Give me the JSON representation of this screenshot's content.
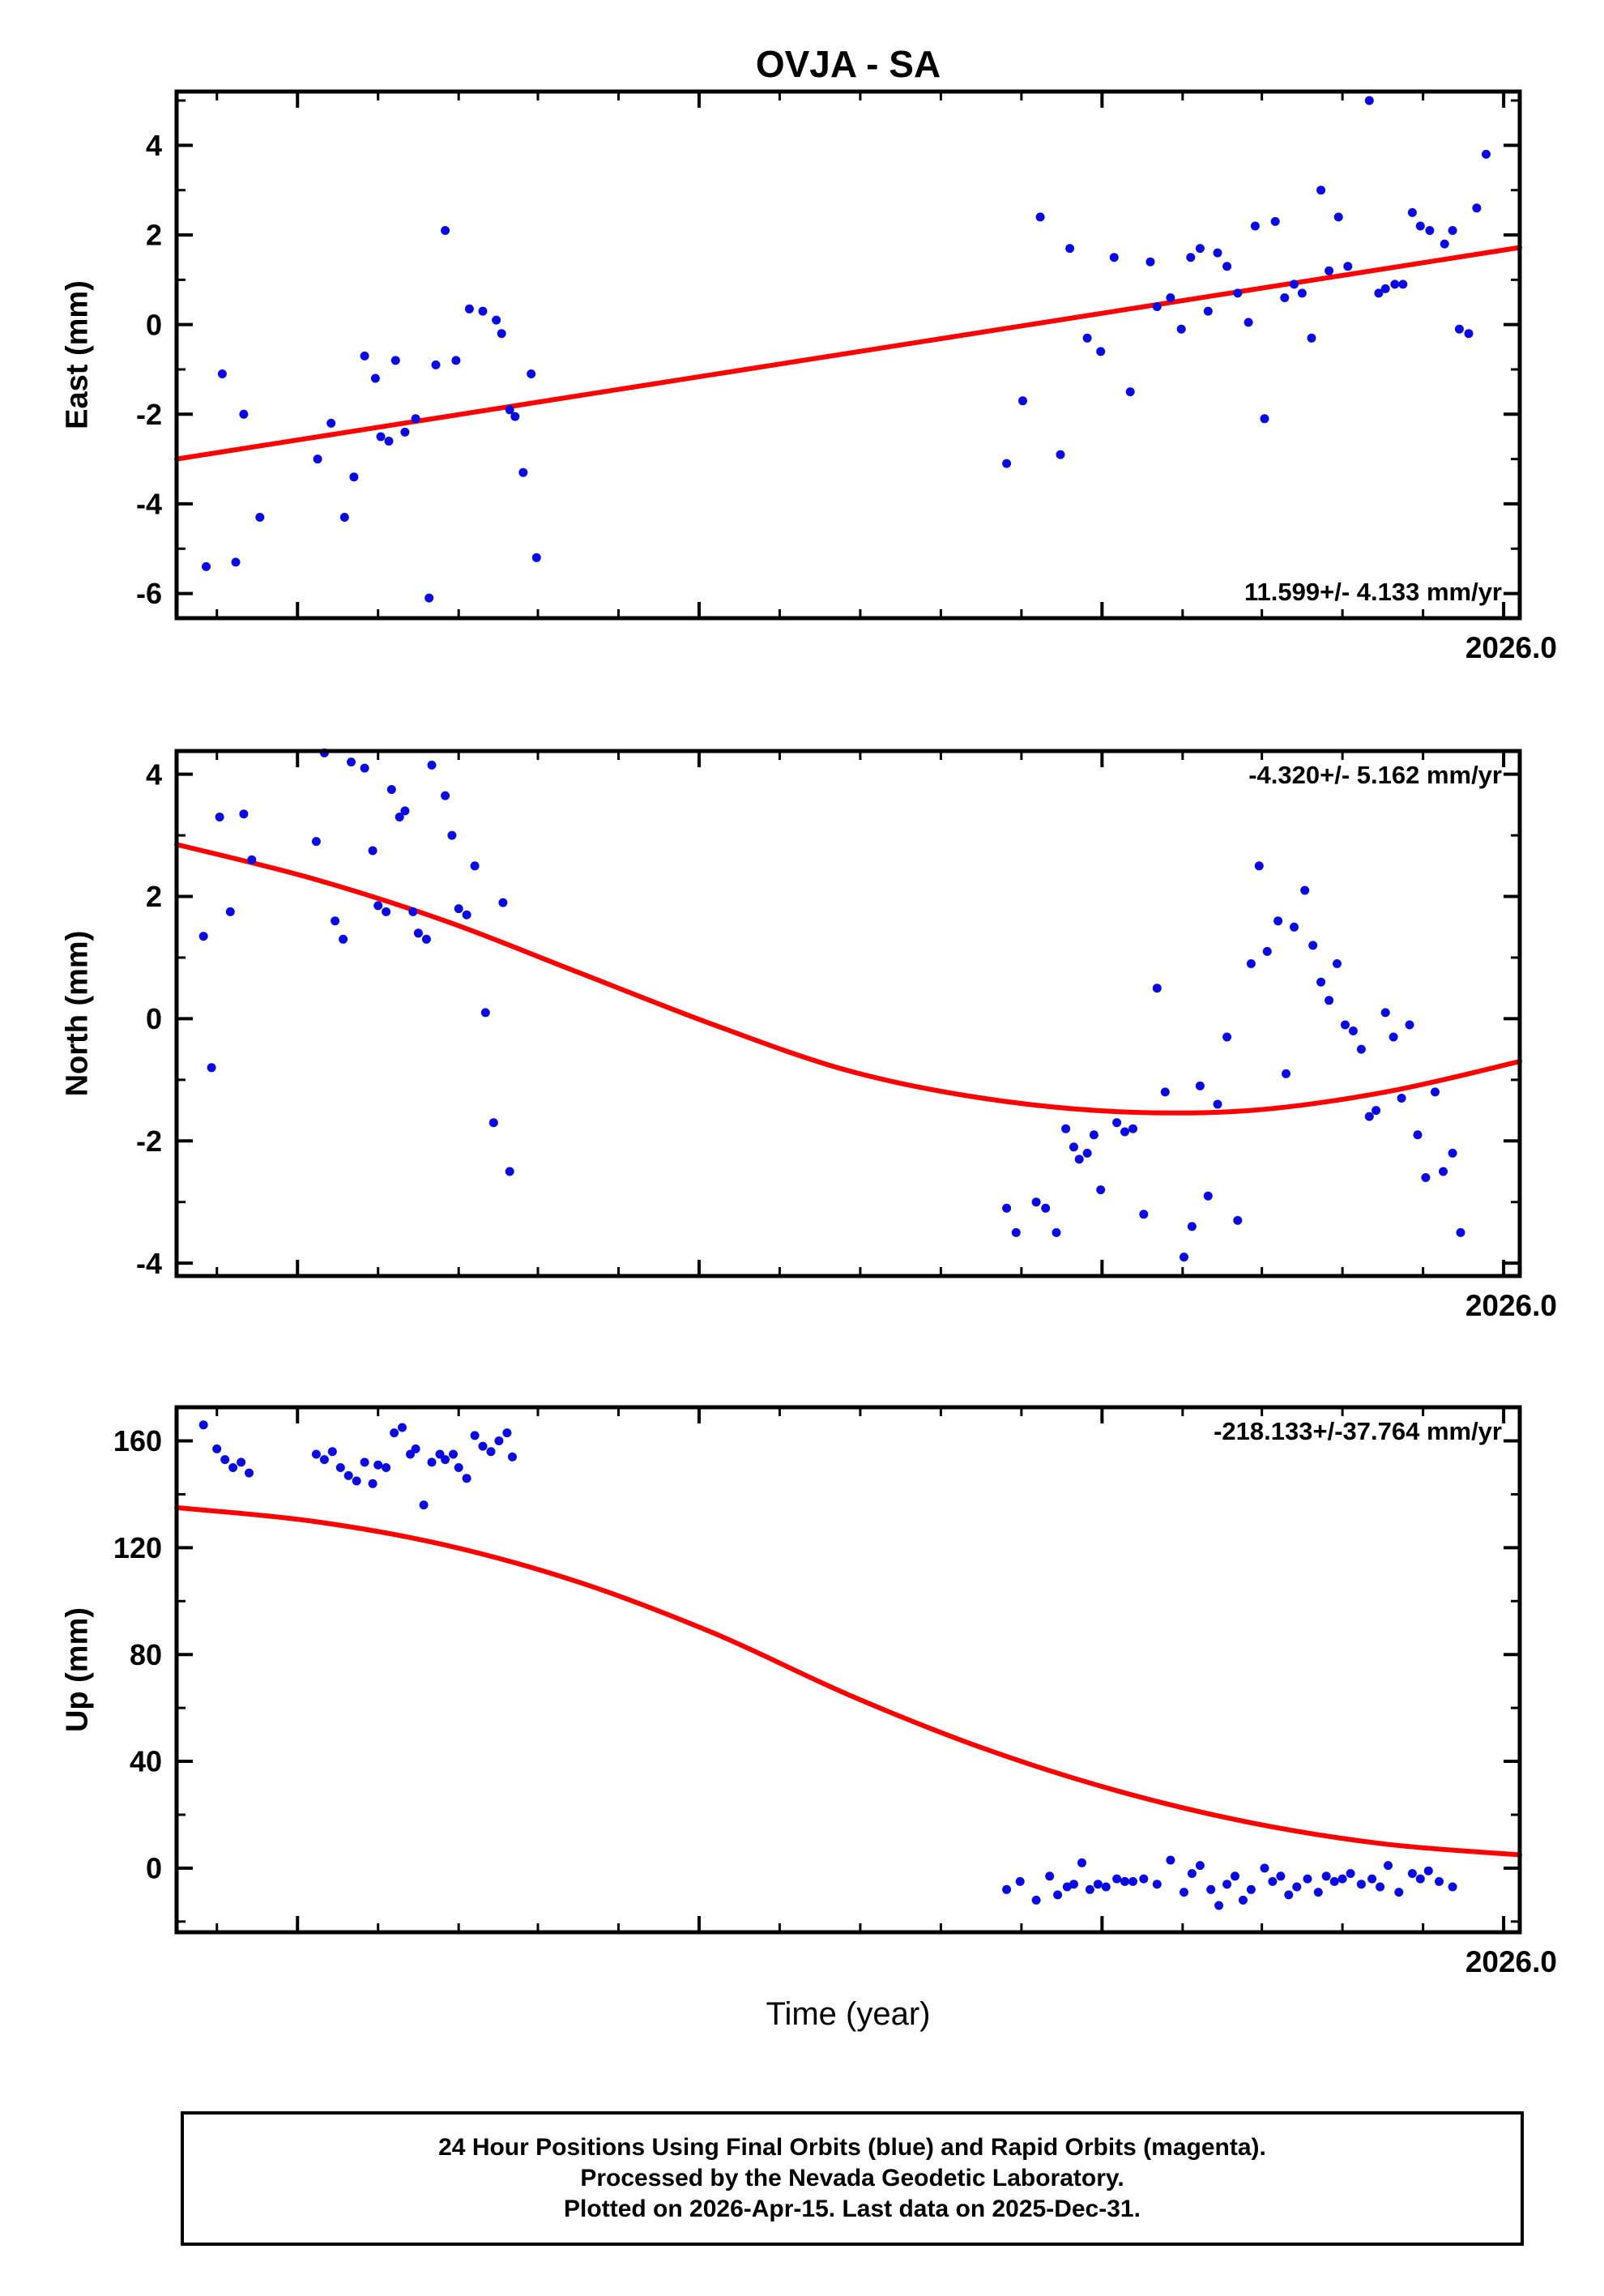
{
  "title": "OVJA - SA",
  "time_axis_label": "Time (year)",
  "colors": {
    "points": "#0a0ae0",
    "trend": "#ff0000",
    "axis": "#000000"
  },
  "x_axis": {
    "right_label": "2026.0",
    "major_fracs": [
      0.09,
      0.389,
      0.689,
      0.988
    ],
    "minor_fracs": [
      0.03,
      0.15,
      0.21,
      0.269,
      0.329,
      0.449,
      0.509,
      0.569,
      0.629,
      0.749,
      0.808,
      0.868,
      0.928
    ]
  },
  "footer": {
    "lines": [
      "24 Hour Positions Using Final Orbits (blue) and Rapid Orbits (magenta).",
      "Processed by the Nevada Geodetic Laboratory.",
      "Plotted on 2026-Apr-15. Last data on 2025-Dec-31."
    ]
  },
  "chart_data": [
    {
      "type": "scatter",
      "ylabel": "East (mm)",
      "annotation": "11.599+/- 4.133 mm/yr",
      "annotation_pos": "bottom-right",
      "x_right_label": "2026.0",
      "ylim": [
        -6.55,
        5.2
      ],
      "yticks": [
        -6,
        -4,
        -2,
        0,
        2,
        4
      ],
      "yticks_minor": [
        -5,
        -3,
        -1,
        1,
        3,
        5
      ],
      "points": [
        [
          0.022,
          -5.4
        ],
        [
          0.034,
          -1.1
        ],
        [
          0.044,
          -5.3
        ],
        [
          0.05,
          -2.0
        ],
        [
          0.062,
          -4.3
        ],
        [
          0.105,
          -3.0
        ],
        [
          0.115,
          -2.2
        ],
        [
          0.125,
          -4.3
        ],
        [
          0.132,
          -3.4
        ],
        [
          0.14,
          -0.7
        ],
        [
          0.148,
          -1.2
        ],
        [
          0.152,
          -2.5
        ],
        [
          0.158,
          -2.6
        ],
        [
          0.163,
          -0.8
        ],
        [
          0.17,
          -2.4
        ],
        [
          0.178,
          -2.1
        ],
        [
          0.188,
          -6.1
        ],
        [
          0.193,
          -0.9
        ],
        [
          0.2,
          2.1
        ],
        [
          0.208,
          -0.8
        ],
        [
          0.218,
          0.35
        ],
        [
          0.228,
          0.3
        ],
        [
          0.238,
          0.1
        ],
        [
          0.242,
          -0.2
        ],
        [
          0.248,
          -1.9
        ],
        [
          0.252,
          -2.05
        ],
        [
          0.258,
          -3.3
        ],
        [
          0.264,
          -1.1
        ],
        [
          0.268,
          -5.2
        ],
        [
          0.618,
          -3.1
        ],
        [
          0.63,
          -1.7
        ],
        [
          0.643,
          2.4
        ],
        [
          0.658,
          -2.9
        ],
        [
          0.665,
          1.7
        ],
        [
          0.678,
          -0.3
        ],
        [
          0.688,
          -0.6
        ],
        [
          0.698,
          1.5
        ],
        [
          0.71,
          -1.5
        ],
        [
          0.725,
          1.4
        ],
        [
          0.73,
          0.4
        ],
        [
          0.74,
          0.6
        ],
        [
          0.748,
          -0.1
        ],
        [
          0.755,
          1.5
        ],
        [
          0.762,
          1.7
        ],
        [
          0.768,
          0.3
        ],
        [
          0.775,
          1.6
        ],
        [
          0.782,
          1.3
        ],
        [
          0.79,
          0.7
        ],
        [
          0.798,
          0.05
        ],
        [
          0.803,
          2.2
        ],
        [
          0.81,
          -2.1
        ],
        [
          0.818,
          2.3
        ],
        [
          0.825,
          0.6
        ],
        [
          0.832,
          0.9
        ],
        [
          0.838,
          0.7
        ],
        [
          0.845,
          -0.3
        ],
        [
          0.852,
          3.0
        ],
        [
          0.858,
          1.2
        ],
        [
          0.865,
          2.4
        ],
        [
          0.872,
          1.3
        ],
        [
          0.888,
          5.0
        ],
        [
          0.895,
          0.7
        ],
        [
          0.9,
          0.8
        ],
        [
          0.907,
          0.9
        ],
        [
          0.913,
          0.9
        ],
        [
          0.92,
          2.5
        ],
        [
          0.926,
          2.2
        ],
        [
          0.933,
          2.1
        ],
        [
          0.944,
          1.8
        ],
        [
          0.95,
          2.1
        ],
        [
          0.955,
          -0.1
        ],
        [
          0.962,
          -0.2
        ],
        [
          0.968,
          2.6
        ],
        [
          0.975,
          3.8
        ]
      ],
      "trend": [
        [
          0,
          -3.0
        ],
        [
          1,
          1.72
        ]
      ]
    },
    {
      "type": "scatter",
      "ylabel": "North (mm)",
      "annotation": "-4.320+/- 5.162 mm/yr",
      "annotation_pos": "top-right",
      "x_right_label": "2026.0",
      "ylim": [
        -4.21,
        4.38
      ],
      "yticks": [
        -4,
        -2,
        0,
        2,
        4
      ],
      "yticks_minor": [
        -3,
        -1,
        1,
        3
      ],
      "points": [
        [
          0.02,
          1.35
        ],
        [
          0.026,
          -0.8
        ],
        [
          0.032,
          3.3
        ],
        [
          0.04,
          1.75
        ],
        [
          0.05,
          3.35
        ],
        [
          0.056,
          2.6
        ],
        [
          0.104,
          2.9
        ],
        [
          0.11,
          4.35
        ],
        [
          0.118,
          1.6
        ],
        [
          0.124,
          1.3
        ],
        [
          0.13,
          4.2
        ],
        [
          0.14,
          4.1
        ],
        [
          0.146,
          2.75
        ],
        [
          0.15,
          1.85
        ],
        [
          0.156,
          1.75
        ],
        [
          0.16,
          3.75
        ],
        [
          0.166,
          3.3
        ],
        [
          0.17,
          3.4
        ],
        [
          0.176,
          1.75
        ],
        [
          0.18,
          1.4
        ],
        [
          0.186,
          1.3
        ],
        [
          0.19,
          4.15
        ],
        [
          0.2,
          3.65
        ],
        [
          0.205,
          3.0
        ],
        [
          0.21,
          1.8
        ],
        [
          0.216,
          1.7
        ],
        [
          0.222,
          2.5
        ],
        [
          0.23,
          0.1
        ],
        [
          0.236,
          -1.7
        ],
        [
          0.243,
          1.9
        ],
        [
          0.248,
          -2.5
        ],
        [
          0.618,
          -3.1
        ],
        [
          0.625,
          -3.5
        ],
        [
          0.64,
          -3.0
        ],
        [
          0.647,
          -3.1
        ],
        [
          0.655,
          -3.5
        ],
        [
          0.662,
          -1.8
        ],
        [
          0.668,
          -2.1
        ],
        [
          0.672,
          -2.3
        ],
        [
          0.678,
          -2.2
        ],
        [
          0.683,
          -1.9
        ],
        [
          0.688,
          -2.8
        ],
        [
          0.7,
          -1.7
        ],
        [
          0.706,
          -1.85
        ],
        [
          0.712,
          -1.8
        ],
        [
          0.72,
          -3.2
        ],
        [
          0.73,
          0.5
        ],
        [
          0.736,
          -1.2
        ],
        [
          0.75,
          -3.9
        ],
        [
          0.756,
          -3.4
        ],
        [
          0.762,
          -1.1
        ],
        [
          0.768,
          -2.9
        ],
        [
          0.775,
          -1.4
        ],
        [
          0.782,
          -0.3
        ],
        [
          0.79,
          -3.3
        ],
        [
          0.8,
          0.9
        ],
        [
          0.806,
          2.5
        ],
        [
          0.812,
          1.1
        ],
        [
          0.82,
          1.6
        ],
        [
          0.826,
          -0.9
        ],
        [
          0.832,
          1.5
        ],
        [
          0.84,
          2.1
        ],
        [
          0.846,
          1.2
        ],
        [
          0.852,
          0.6
        ],
        [
          0.858,
          0.3
        ],
        [
          0.864,
          0.9
        ],
        [
          0.87,
          -0.1
        ],
        [
          0.876,
          -0.2
        ],
        [
          0.882,
          -0.5
        ],
        [
          0.888,
          -1.6
        ],
        [
          0.893,
          -1.5
        ],
        [
          0.9,
          0.1
        ],
        [
          0.906,
          -0.3
        ],
        [
          0.912,
          -1.3
        ],
        [
          0.918,
          -0.1
        ],
        [
          0.924,
          -1.9
        ],
        [
          0.93,
          -2.6
        ],
        [
          0.937,
          -1.2
        ],
        [
          0.943,
          -2.5
        ],
        [
          0.95,
          -2.2
        ],
        [
          0.956,
          -3.5
        ]
      ],
      "trend": [
        [
          0,
          2.85
        ],
        [
          0.1,
          2.3
        ],
        [
          0.2,
          1.6
        ],
        [
          0.3,
          0.75
        ],
        [
          0.4,
          -0.1
        ],
        [
          0.5,
          -0.85
        ],
        [
          0.6,
          -1.3
        ],
        [
          0.7,
          -1.52
        ],
        [
          0.8,
          -1.5
        ],
        [
          0.9,
          -1.2
        ],
        [
          1.0,
          -0.7
        ]
      ]
    },
    {
      "type": "scatter",
      "ylabel": "Up (mm)",
      "annotation": "-218.133+/-37.764 mm/yr",
      "annotation_pos": "top-right",
      "x_right_label": "2026.0",
      "ylim": [
        -24,
        172.6
      ],
      "yticks": [
        0,
        40,
        80,
        120,
        160
      ],
      "yticks_minor": [
        -20,
        20,
        60,
        100,
        140
      ],
      "points": [
        [
          0.02,
          166
        ],
        [
          0.03,
          157
        ],
        [
          0.036,
          153
        ],
        [
          0.042,
          150
        ],
        [
          0.048,
          152
        ],
        [
          0.054,
          148
        ],
        [
          0.104,
          155
        ],
        [
          0.11,
          153
        ],
        [
          0.116,
          156
        ],
        [
          0.122,
          150
        ],
        [
          0.128,
          147
        ],
        [
          0.134,
          145
        ],
        [
          0.14,
          152
        ],
        [
          0.146,
          144
        ],
        [
          0.15,
          151
        ],
        [
          0.156,
          150
        ],
        [
          0.162,
          163
        ],
        [
          0.168,
          165
        ],
        [
          0.174,
          155
        ],
        [
          0.178,
          157
        ],
        [
          0.184,
          136
        ],
        [
          0.19,
          152
        ],
        [
          0.196,
          155
        ],
        [
          0.2,
          153
        ],
        [
          0.206,
          155
        ],
        [
          0.21,
          150
        ],
        [
          0.216,
          146
        ],
        [
          0.222,
          162
        ],
        [
          0.228,
          158
        ],
        [
          0.234,
          156
        ],
        [
          0.24,
          160
        ],
        [
          0.246,
          163
        ],
        [
          0.25,
          154
        ],
        [
          0.618,
          -8
        ],
        [
          0.628,
          -5
        ],
        [
          0.64,
          -12
        ],
        [
          0.65,
          -3
        ],
        [
          0.656,
          -10
        ],
        [
          0.663,
          -7
        ],
        [
          0.668,
          -6
        ],
        [
          0.674,
          2
        ],
        [
          0.68,
          -8
        ],
        [
          0.686,
          -6
        ],
        [
          0.692,
          -7
        ],
        [
          0.7,
          -4
        ],
        [
          0.706,
          -5
        ],
        [
          0.712,
          -5
        ],
        [
          0.72,
          -4
        ],
        [
          0.73,
          -6
        ],
        [
          0.74,
          3
        ],
        [
          0.75,
          -9
        ],
        [
          0.756,
          -2
        ],
        [
          0.762,
          1
        ],
        [
          0.77,
          -8
        ],
        [
          0.776,
          -14
        ],
        [
          0.782,
          -6
        ],
        [
          0.788,
          -3
        ],
        [
          0.794,
          -12
        ],
        [
          0.8,
          -8
        ],
        [
          0.81,
          0
        ],
        [
          0.816,
          -5
        ],
        [
          0.822,
          -3
        ],
        [
          0.828,
          -10
        ],
        [
          0.834,
          -7
        ],
        [
          0.842,
          -4
        ],
        [
          0.85,
          -9
        ],
        [
          0.856,
          -3
        ],
        [
          0.862,
          -5
        ],
        [
          0.868,
          -4
        ],
        [
          0.874,
          -2
        ],
        [
          0.882,
          -6
        ],
        [
          0.89,
          -4
        ],
        [
          0.896,
          -7
        ],
        [
          0.902,
          1
        ],
        [
          0.91,
          -9
        ],
        [
          0.92,
          -2
        ],
        [
          0.926,
          -4
        ],
        [
          0.932,
          -1
        ],
        [
          0.94,
          -5
        ],
        [
          0.95,
          -7
        ]
      ],
      "trend": [
        [
          0,
          135
        ],
        [
          0.1,
          130
        ],
        [
          0.2,
          121
        ],
        [
          0.3,
          107
        ],
        [
          0.4,
          88
        ],
        [
          0.5,
          65
        ],
        [
          0.6,
          45
        ],
        [
          0.7,
          29
        ],
        [
          0.8,
          17
        ],
        [
          0.9,
          9
        ],
        [
          1.0,
          5
        ]
      ]
    }
  ]
}
